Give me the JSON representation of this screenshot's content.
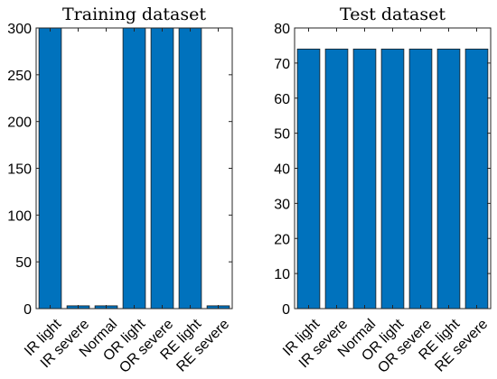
{
  "colors": {
    "bar": "#0072BD",
    "axis": "#262626"
  },
  "chart_data": [
    {
      "type": "bar",
      "title": "Training dataset",
      "categories": [
        "IR light",
        "IR severe",
        "Normal",
        "OR light",
        "OR severe",
        "RE light",
        "RE severe"
      ],
      "values": [
        300,
        3,
        3,
        300,
        300,
        300,
        3
      ],
      "ylim": [
        0,
        300
      ],
      "yticks": [
        0,
        50,
        100,
        150,
        200,
        250,
        300
      ],
      "xlabel": "",
      "ylabel": "",
      "grid": false,
      "legend": "none"
    },
    {
      "type": "bar",
      "title": "Test dataset",
      "categories": [
        "IR light",
        "IR severe",
        "Normal",
        "OR light",
        "OR severe",
        "RE light",
        "RE severe"
      ],
      "values": [
        74,
        74,
        74,
        74,
        74,
        74,
        74
      ],
      "ylim": [
        0,
        80
      ],
      "yticks": [
        0,
        10,
        20,
        30,
        40,
        50,
        60,
        70,
        80
      ],
      "xlabel": "",
      "ylabel": "",
      "grid": false,
      "legend": "none"
    }
  ]
}
